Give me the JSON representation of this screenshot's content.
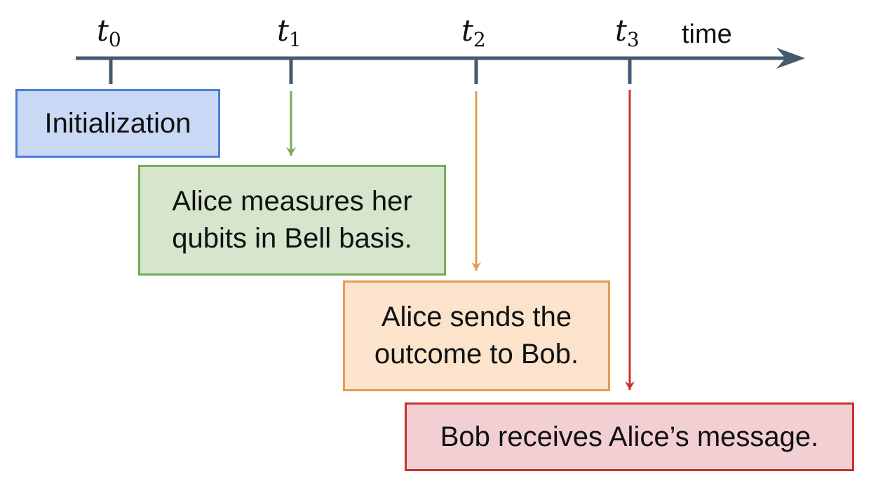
{
  "timeline": {
    "axis_label": "time",
    "axis_color": "#445a70",
    "ticks": [
      {
        "base": "t",
        "sub": "0"
      },
      {
        "base": "t",
        "sub": "1"
      },
      {
        "base": "t",
        "sub": "2"
      },
      {
        "base": "t",
        "sub": "3"
      }
    ]
  },
  "steps": {
    "init": {
      "label": "Initialization",
      "fill": "#c9d8f4",
      "border": "#4a7fd6"
    },
    "measure": {
      "line1": "Alice measures her",
      "line2": "qubits in Bell basis.",
      "fill": "#d6e6cc",
      "border": "#76aa5b"
    },
    "send": {
      "line1": "Alice sends the",
      "line2": "outcome to Bob.",
      "fill": "#fbe3cc",
      "border": "#e29d52"
    },
    "receive": {
      "label": "Bob receives Alice’s message.",
      "fill": "#f1cfd2",
      "border": "#c8312f"
    }
  },
  "arrows": {
    "t1_color": "#76aa5b",
    "t2_color": "#e29d52",
    "t3_color": "#c8312f"
  }
}
